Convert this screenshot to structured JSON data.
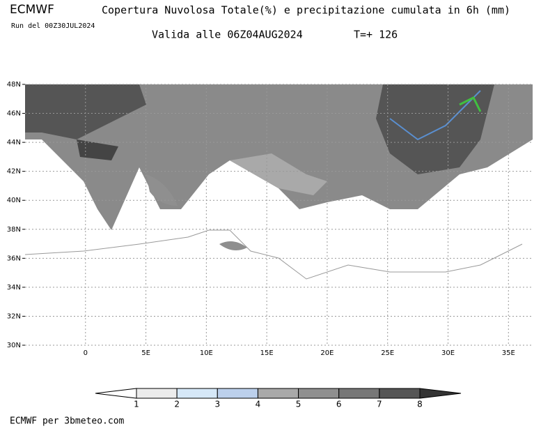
{
  "header": {
    "model": "ECMWF",
    "title": "Copertura Nuvolosa Totale(%) e precipitazione cumulata in 6h (mm)",
    "run": "Run del 00Z30JUL2024",
    "valid": "Valida alle 06Z04AUG2024",
    "lead": "T=+ 126"
  },
  "map": {
    "lon_range": [
      -5,
      37
    ],
    "lat_range": [
      30,
      48
    ],
    "lon_ticks": [
      {
        "value": 0,
        "label": "0"
      },
      {
        "value": 5,
        "label": "5E"
      },
      {
        "value": 10,
        "label": "10E"
      },
      {
        "value": 15,
        "label": "15E"
      },
      {
        "value": 20,
        "label": "20E"
      },
      {
        "value": 25,
        "label": "25E"
      },
      {
        "value": 30,
        "label": "30E"
      },
      {
        "value": 35,
        "label": "35E"
      }
    ],
    "lat_ticks": [
      {
        "value": 30,
        "label": "30N"
      },
      {
        "value": 32,
        "label": "32N"
      },
      {
        "value": 34,
        "label": "34N"
      },
      {
        "value": 36,
        "label": "36N"
      },
      {
        "value": 38,
        "label": "38N"
      },
      {
        "value": 40,
        "label": "40N"
      },
      {
        "value": 42,
        "label": "42N"
      },
      {
        "value": 44,
        "label": "44N"
      },
      {
        "value": 46,
        "label": "46N"
      },
      {
        "value": 48,
        "label": "48N"
      }
    ]
  },
  "legend": {
    "levels": [
      1,
      2,
      3,
      4,
      5,
      6,
      7,
      8
    ],
    "colors": [
      "#ececec",
      "#d6e8f8",
      "#bcd0ec",
      "#a9a9a9",
      "#8f8f8f",
      "#777777",
      "#555555"
    ],
    "under_color": "#ffffff",
    "over_color": "#333333"
  },
  "footer": {
    "credit": "ECMWF per 3bmeteo.com"
  }
}
